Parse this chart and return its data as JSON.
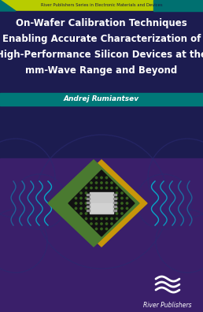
{
  "series_label_text": "River Publishers Series in Electronic Materials and Devices",
  "title_line1": "On-Wafer Calibration Techniques",
  "title_line2": "Enabling Accurate Characterization of",
  "title_line3": "High-Performance Silicon Devices at the",
  "title_line4": "mm-Wave Range and Beyond",
  "author": "Andrej Rumiantsev",
  "publisher": "River Publishers",
  "bg_top_color": "#1c1c50",
  "bg_bottom_color": "#3a1f6a",
  "series_bar_color1": "#b8cc00",
  "series_bar_color2": "#007070",
  "author_bar_color": "#007878",
  "title_text_color": "#ffffff",
  "author_text_color": "#ffffff",
  "series_text_color": "#1a1a40",
  "publisher_text_color": "#ffffff",
  "chip_green": "#4a7a30",
  "chip_yellow": "#c8960a",
  "chip_dark": "#111111",
  "chip_pcb": "#1a1a10",
  "chip_silver": "#c8c8c8",
  "chip_silver2": "#d8d8d8",
  "wave_color": "#00b8d4",
  "circle_color": "#2a2a70"
}
